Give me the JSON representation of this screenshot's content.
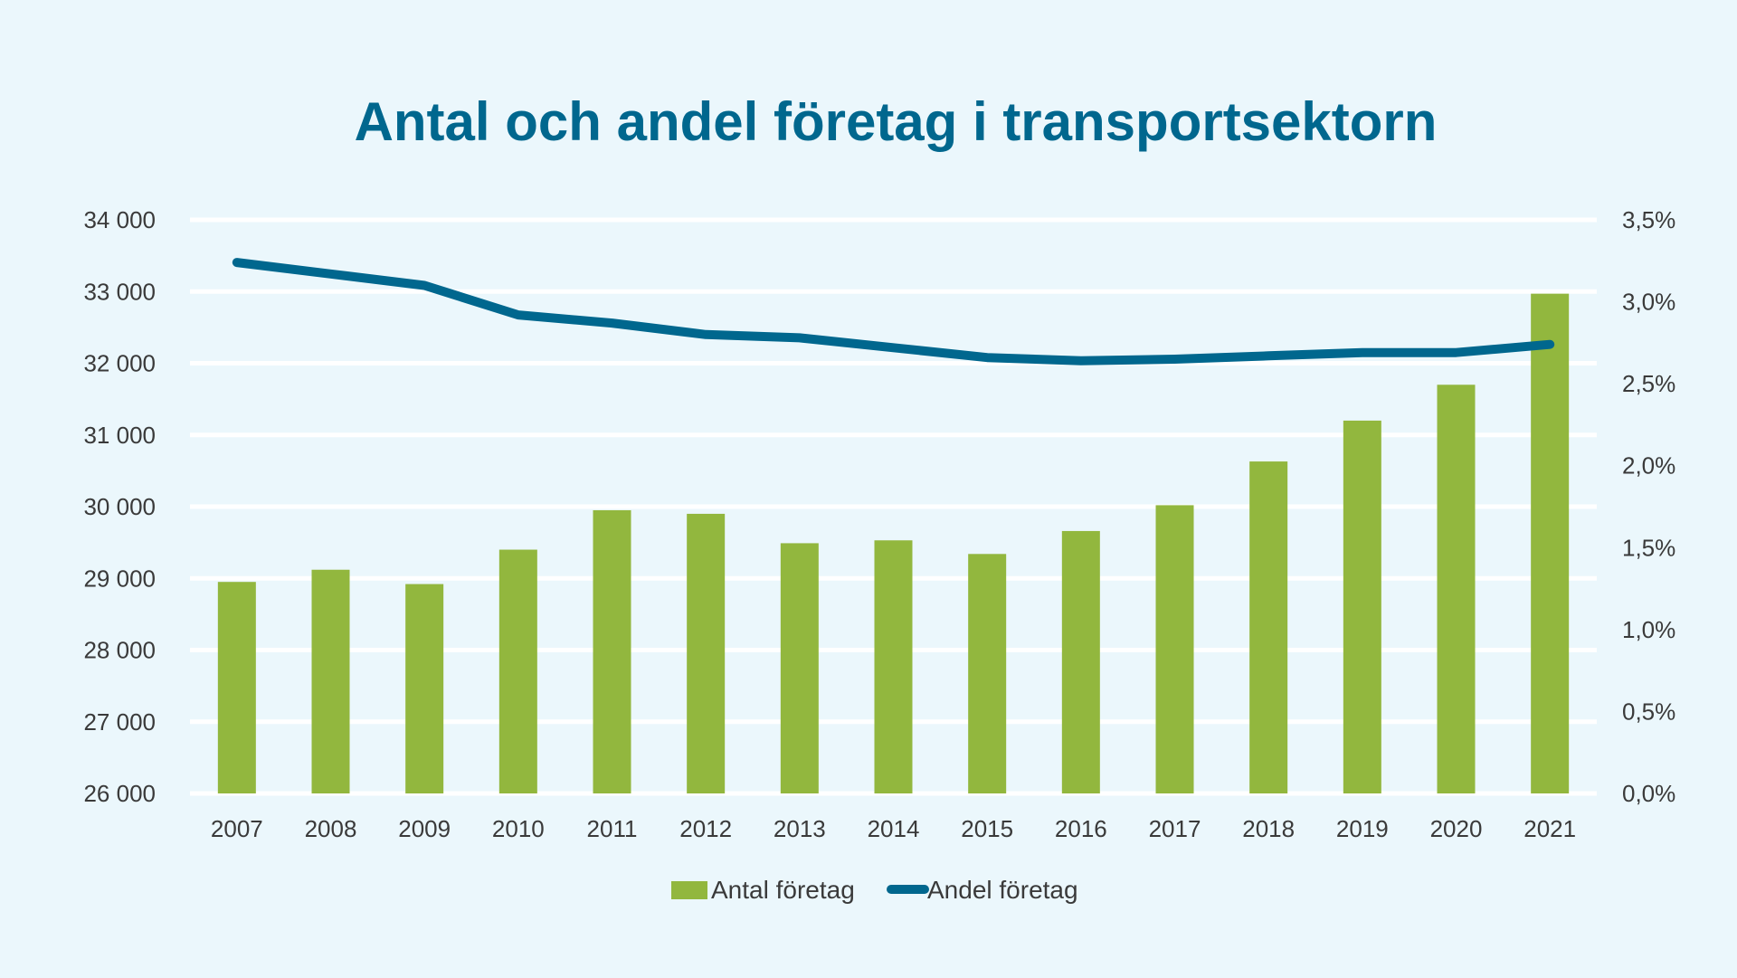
{
  "chart_data": {
    "type": "bar",
    "title": "Antal och andel företag i transportsektorn",
    "categories": [
      "2007",
      "2008",
      "2009",
      "2010",
      "2011",
      "2012",
      "2013",
      "2014",
      "2015",
      "2016",
      "2017",
      "2018",
      "2019",
      "2020",
      "2021"
    ],
    "series": [
      {
        "name": "Antal företag",
        "type": "bar",
        "axis": "left",
        "color": "#92b73e",
        "values": [
          28950,
          29120,
          28920,
          29400,
          29950,
          29900,
          29490,
          29530,
          29340,
          29660,
          30020,
          30630,
          31200,
          31700,
          32970
        ]
      },
      {
        "name": "Andel företag",
        "type": "line",
        "axis": "right",
        "color": "#00678e",
        "values": [
          3.24,
          3.17,
          3.1,
          2.92,
          2.87,
          2.8,
          2.78,
          2.72,
          2.66,
          2.64,
          2.65,
          2.67,
          2.69,
          2.69,
          2.74
        ]
      }
    ],
    "left_axis": {
      "min": 26000,
      "max": 34000,
      "ticks": [
        26000,
        27000,
        28000,
        29000,
        30000,
        31000,
        32000,
        33000,
        34000
      ],
      "tick_labels": [
        "26 000",
        "27 000",
        "28 000",
        "29 000",
        "30 000",
        "31 000",
        "32 000",
        "33 000",
        "34 000"
      ]
    },
    "right_axis": {
      "min": 0,
      "max": 3.5,
      "ticks": [
        0,
        0.5,
        1.0,
        1.5,
        2.0,
        2.5,
        3.0,
        3.5
      ],
      "tick_labels": [
        "0,0%",
        "0,5%",
        "1,0%",
        "1,5%",
        "2,0%",
        "2,5%",
        "3,0%",
        "3,5%"
      ]
    },
    "grid": true,
    "legend_position": "bottom-center"
  }
}
